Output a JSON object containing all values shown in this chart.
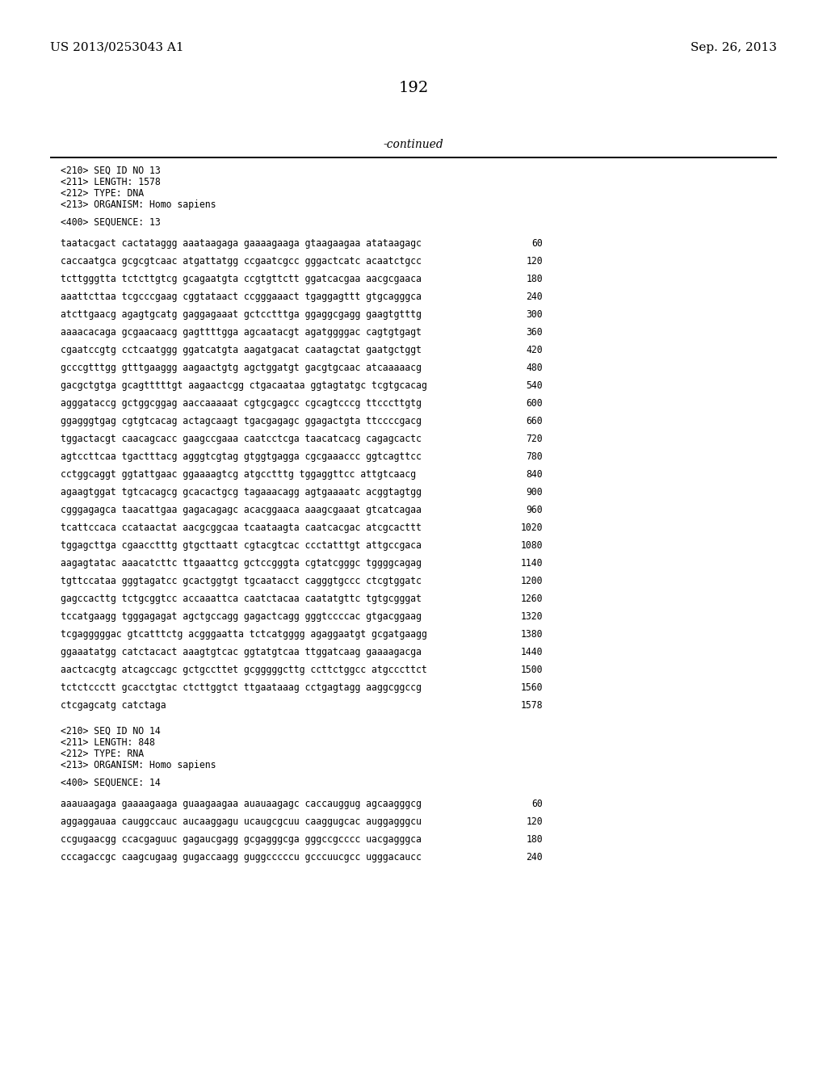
{
  "header_left": "US 2013/0253043 A1",
  "header_right": "Sep. 26, 2013",
  "page_number": "192",
  "continued_label": "-continued",
  "background_color": "#ffffff",
  "text_color": "#000000",
  "seq_info": [
    "<210> SEQ ID NO 13",
    "<211> LENGTH: 1578",
    "<212> TYPE: DNA",
    "<213> ORGANISM: Homo sapiens"
  ],
  "seq_header": "<400> SEQUENCE: 13",
  "sequence_lines": [
    [
      "taatacgact cactataggg aaataagaga gaaaagaaga gtaagaagaa atataagagc",
      "60"
    ],
    [
      "caccaatgca gcgcgtcaac atgattatgg ccgaatcgcc gggactcatc acaatctgcc",
      "120"
    ],
    [
      "tcttgggtta tctcttgtcg gcagaatgta ccgtgttctt ggatcacgaa aacgcgaaca",
      "180"
    ],
    [
      "aaattcttaa tcgcccgaag cggtataact ccgggaaact tgaggagttt gtgcagggca",
      "240"
    ],
    [
      "atcttgaacg agagtgcatg gaggagaaat gctcctttga ggaggcgagg gaagtgtttg",
      "300"
    ],
    [
      "aaaacacaga gcgaacaacg gagttttgga agcaatacgt agatggggac cagtgtgagt",
      "360"
    ],
    [
      "cgaatccgtg cctcaatggg ggatcatgta aagatgacat caatagctat gaatgctggt",
      "420"
    ],
    [
      "gcccgtttgg gtttgaaggg aagaactgtg agctggatgt gacgtgcaac atcaaaaacg",
      "480"
    ],
    [
      "gacgctgtga gcagtttttgt aagaactcgg ctgacaataa ggtagtatgc tcgtgcacag",
      "540"
    ],
    [
      "agggataccg gctggcggag aaccaaaaat cgtgcgagcc cgcagtcccg ttcccttgtg",
      "600"
    ],
    [
      "ggagggtgag cgtgtcacag actagcaagt tgacgagagc ggagactgta ttccccgacg",
      "660"
    ],
    [
      "tggactacgt caacagcacc gaagccgaaa caatcctcga taacatcacg cagagcactc",
      "720"
    ],
    [
      "agtccttcaa tgactttacg agggtcgtag gtggtgagga cgcgaaaccc ggtcagttcc",
      "780"
    ],
    [
      "cctggcaggt ggtattgaac ggaaaagtcg atgcctttg tggaggttcc attgtcaacg",
      "840"
    ],
    [
      "agaagtggat tgtcacagcg gcacactgcg tagaaacagg agtgaaaatc acggtagtgg",
      "900"
    ],
    [
      "cgggagagca taacattgaa gagacagagc acacggaaca aaagcgaaat gtcatcagaa",
      "960"
    ],
    [
      "tcattccaca ccataactat aacgcggcaa tcaataagta caatcacgac atcgcacttt",
      "1020"
    ],
    [
      "tggagcttga cgaacctttg gtgcttaatt cgtacgtcac ccctatttgt attgccgaca",
      "1080"
    ],
    [
      "aagagtatac aaacatcttc ttgaaattcg gctccgggta cgtatcgggc tggggcagag",
      "1140"
    ],
    [
      "tgttccataa gggtagatcc gcactggtgt tgcaatacct cagggtgccc ctcgtggatc",
      "1200"
    ],
    [
      "gagccacttg tctgcggtcc accaaattca caatctacaa caatatgttc tgtgcgggat",
      "1260"
    ],
    [
      "tccatgaagg tgggagagat agctgccagg gagactcagg gggtccccac gtgacggaag",
      "1320"
    ],
    [
      "tcgagggggac gtcatttctg acgggaatta tctcatgggg agaggaatgt gcgatgaagg",
      "1380"
    ],
    [
      "ggaaatatgg catctacact aaagtgtcac ggtatgtcaa ttggatcaag gaaaagacga",
      "1440"
    ],
    [
      "aactcacgtg atcagccagc gctgccttet gcgggggcttg ccttctggcc atgcccttct",
      "1500"
    ],
    [
      "tctctccctt gcacctgtac ctcttggtct ttgaataaag cctgagtagg aaggcggccg",
      "1560"
    ],
    [
      "ctcgagcatg catctaga",
      "1578"
    ]
  ],
  "seq_info2": [
    "<210> SEQ ID NO 14",
    "<211> LENGTH: 848",
    "<212> TYPE: RNA",
    "<213> ORGANISM: Homo sapiens"
  ],
  "seq_header2": "<400> SEQUENCE: 14",
  "sequence_lines2": [
    [
      "aaauaagaga gaaaagaaga guaagaagaa auauaagagc caccauggug agcaagggcg",
      "60"
    ],
    [
      "aggaggauaa cauggccauc aucaaggagu ucaugcgcuu caaggugcac auggagggcu",
      "120"
    ],
    [
      "ccgugaacgg ccacgaguuc gagaucgagg gcgagggcga gggccgcccc uacgagggca",
      "180"
    ],
    [
      "cccagaccgc caagcugaag gugaccaagg guggcccccu gcccuucgcc ugggacaucc",
      "240"
    ]
  ]
}
